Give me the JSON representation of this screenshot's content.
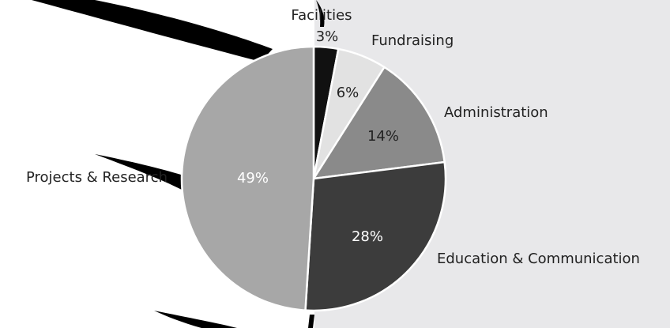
{
  "chart_data": {
    "type": "pie",
    "categories": [
      "Facilities",
      "Fundraising",
      "Administration",
      "Education & Communication",
      "Projects & Research"
    ],
    "values": [
      3,
      6,
      14,
      28,
      49
    ],
    "value_labels": [
      "3%",
      "6%",
      "14%",
      "28%",
      "49%"
    ],
    "colors": [
      "#111111",
      "#e2e2e2",
      "#8a8a8a",
      "#3c3c3c",
      "#a7a7a7"
    ]
  }
}
